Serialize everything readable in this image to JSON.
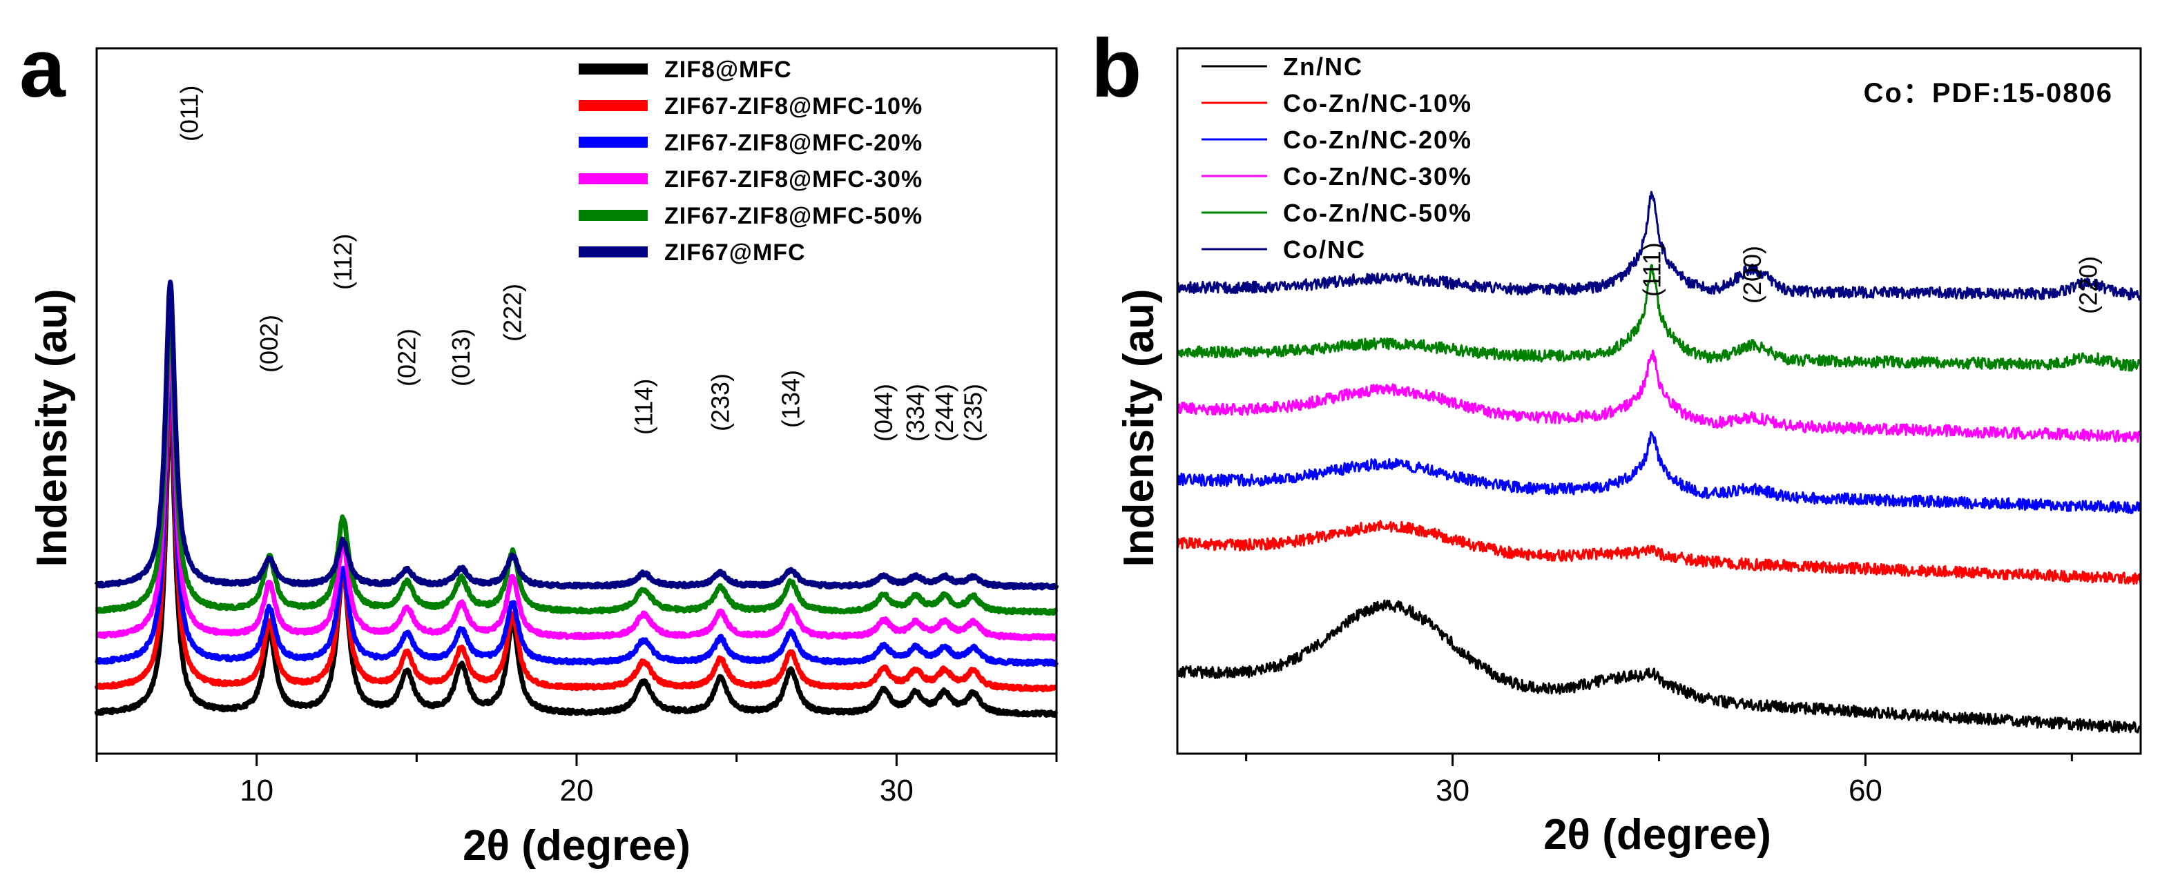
{
  "chart_data": [
    {
      "panel": "a",
      "type": "line",
      "xlabel": "2θ (degree)",
      "ylabel": "Indensity (au)",
      "xlim": [
        5,
        35
      ],
      "xticks": [
        10,
        20,
        30
      ],
      "legend_position": "top-right",
      "series": [
        {
          "name": "ZIF8@MFC",
          "color": "#000000",
          "offset": 0,
          "scale": 1.0,
          "noise": 0.6
        },
        {
          "name": "ZIF67-ZIF8@MFC-10%",
          "color": "#ff0000",
          "offset": 1,
          "scale": 0.8,
          "noise": 0.6
        },
        {
          "name": "ZIF67-ZIF8@MFC-20%",
          "color": "#0000ff",
          "offset": 2,
          "scale": 0.65,
          "noise": 0.6
        },
        {
          "name": "ZIF67-ZIF8@MFC-30%",
          "color": "#ff00ff",
          "offset": 3,
          "scale": 0.65,
          "noise": 0.6
        },
        {
          "name": "ZIF67-ZIF8@MFC-50%",
          "color": "#008000",
          "offset": 4,
          "scale": 0.65,
          "noise": 0.6
        },
        {
          "name": "ZIF67@MFC",
          "color": "#000080",
          "offset": 5,
          "scale": 0.3,
          "noise": 0.6
        }
      ],
      "peaks": [
        {
          "label": "(011)",
          "x": 7.3,
          "height": 10,
          "width": 0.18
        },
        {
          "label": "(002)",
          "x": 10.4,
          "height": 2.5,
          "width": 0.22
        },
        {
          "label": "(112)",
          "x": 12.7,
          "height": 4.5,
          "width": 0.22
        },
        {
          "label": "(022)",
          "x": 14.7,
          "height": 1.2,
          "width": 0.25
        },
        {
          "label": "(013)",
          "x": 16.4,
          "height": 1.4,
          "width": 0.25
        },
        {
          "label": "(222)",
          "x": 18.0,
          "height": 2.8,
          "width": 0.22
        },
        {
          "label": "(114)",
          "x": 22.1,
          "height": 0.9,
          "width": 0.3
        },
        {
          "label": "(233)",
          "x": 24.5,
          "height": 1.0,
          "width": 0.25
        },
        {
          "label": "(134)",
          "x": 26.7,
          "height": 1.3,
          "width": 0.25
        },
        {
          "label": "(044)",
          "x": 29.6,
          "height": 0.6,
          "width": 0.25
        },
        {
          "label": "(334)",
          "x": 30.6,
          "height": 0.5,
          "width": 0.25
        },
        {
          "label": "(244)",
          "x": 31.5,
          "height": 0.5,
          "width": 0.25
        },
        {
          "label": "(235)",
          "x": 32.4,
          "height": 0.5,
          "width": 0.25
        }
      ]
    },
    {
      "panel": "b",
      "type": "line",
      "xlabel": "2θ (degree)",
      "ylabel": "Indensity (au)",
      "xlim": [
        10,
        80
      ],
      "xticks": [
        30,
        60
      ],
      "legend_position": "top-left",
      "annotation": "Co：PDF:15-0806",
      "series": [
        {
          "name": "Zn/NC",
          "color": "#000000",
          "offset": 0,
          "hump": 1.1,
          "p111": 0.1,
          "p200": 0.0,
          "p220": 0.0,
          "slope": 0.8
        },
        {
          "name": "Co-Zn/NC-10%",
          "color": "#ff0000",
          "offset": 2.1,
          "hump": 0.35,
          "p111": 0.05,
          "p200": 0.0,
          "p220": 0.0,
          "slope": 0.5
        },
        {
          "name": "Co-Zn/NC-20%",
          "color": "#0000ff",
          "offset": 3.1,
          "hump": 0.3,
          "p111": 0.55,
          "p200": 0.1,
          "p220": 0.0,
          "slope": 0.4
        },
        {
          "name": "Co-Zn/NC-30%",
          "color": "#ff00ff",
          "offset": 4.1,
          "hump": 0.35,
          "p111": 0.65,
          "p200": 0.1,
          "p220": 0.0,
          "slope": 0.4
        },
        {
          "name": "Co-Zn/NC-50%",
          "color": "#008000",
          "offset": 5.1,
          "hump": 0.15,
          "p111": 0.9,
          "p200": 0.2,
          "p220": 0.1,
          "slope": 0.2
        },
        {
          "name": "Co/NC",
          "color": "#000080",
          "offset": 6.1,
          "hump": 0.15,
          "p111": 1.0,
          "p200": 0.3,
          "p220": 0.15,
          "slope": 0.1
        }
      ],
      "peaks": [
        {
          "label": "(111)",
          "x": 44.5
        },
        {
          "label": "(200)",
          "x": 51.8
        },
        {
          "label": "(220)",
          "x": 76.2
        }
      ]
    }
  ]
}
